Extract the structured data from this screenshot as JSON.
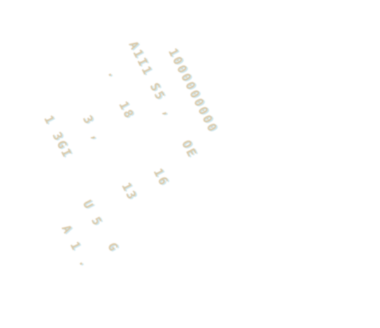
{
  "fragments": [
    {
      "text": "1000000000"
    },
    {
      "text": "A1I1 S5 ,"
    },
    {
      "text": "."
    },
    {
      "text": "18"
    },
    {
      "text": "1 3GI"
    },
    {
      "text": "3 ,"
    },
    {
      "text": "OE"
    },
    {
      "text": "16"
    },
    {
      "text": "13"
    },
    {
      "text": "U 5"
    },
    {
      "text": "A 1 ."
    },
    {
      "text": "G"
    }
  ]
}
